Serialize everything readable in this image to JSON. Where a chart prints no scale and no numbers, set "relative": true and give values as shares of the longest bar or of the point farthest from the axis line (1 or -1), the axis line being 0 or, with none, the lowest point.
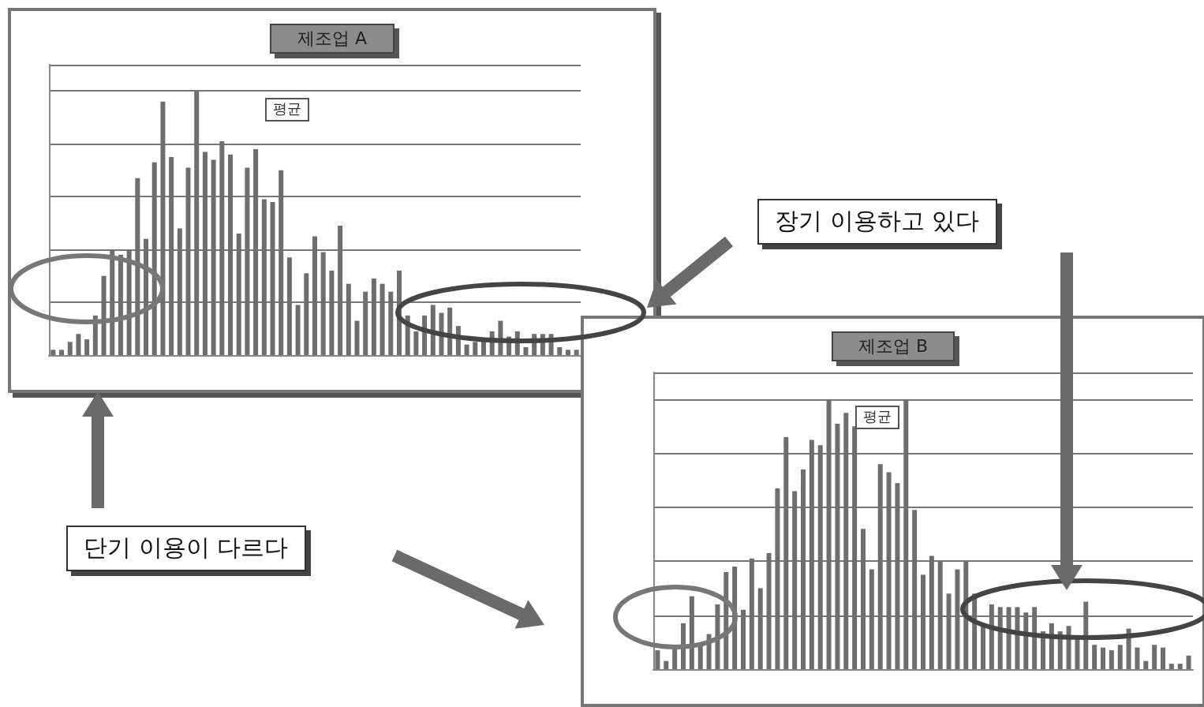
{
  "chart_data": [
    {
      "type": "bar",
      "title": "제조업 A",
      "relative": true,
      "grid": "y",
      "color": "#6e6e6e",
      "annotations": [
        "평균",
        "장기 이용하고 있다"
      ],
      "categories": [
        null,
        null,
        null,
        null,
        null,
        null,
        null,
        null,
        null,
        null,
        null,
        null,
        null,
        null,
        null,
        null,
        null,
        null,
        null,
        null,
        null,
        null,
        null,
        null,
        null,
        null,
        null,
        null,
        null,
        null,
        null,
        null,
        null,
        null,
        null,
        null,
        null,
        null,
        null,
        null,
        null,
        null,
        null,
        null,
        null,
        null,
        null,
        null,
        null,
        null,
        null,
        null,
        null,
        null,
        null,
        null,
        null,
        null,
        null,
        null,
        null,
        null,
        null
      ],
      "values": [
        0.02,
        0.02,
        0.05,
        0.08,
        0.06,
        0.15,
        0.3,
        0.4,
        0.38,
        0.4,
        0.67,
        0.44,
        0.73,
        0.96,
        0.75,
        0.48,
        0.71,
        1,
        0.77,
        0.74,
        0.81,
        0.76,
        0.46,
        0.71,
        0.78,
        0.59,
        0.58,
        0.7,
        0.37,
        0.19,
        0.31,
        0.45,
        0.39,
        0.32,
        0.49,
        0.27,
        0.13,
        0.24,
        0.29,
        0.27,
        0.24,
        0.32,
        0.15,
        0.09,
        0.15,
        0.19,
        0.16,
        0.18,
        0.11,
        0.04,
        0.05,
        0.06,
        0.09,
        0.13,
        0.07,
        0.09,
        0.03,
        0.08,
        0.08,
        0.08,
        0.03,
        0.02,
        0.02
      ]
    },
    {
      "type": "bar",
      "title": "제조업 B",
      "relative": true,
      "grid": "y",
      "color": "#6e6e6e",
      "annotations": [
        "평균",
        "단기 이용이 다르다"
      ],
      "categories": [
        null,
        null,
        null,
        null,
        null,
        null,
        null,
        null,
        null,
        null,
        null,
        null,
        null,
        null,
        null,
        null,
        null,
        null,
        null,
        null,
        null,
        null,
        null,
        null,
        null,
        null,
        null,
        null,
        null,
        null,
        null,
        null,
        null,
        null,
        null,
        null,
        null,
        null,
        null,
        null,
        null,
        null,
        null,
        null,
        null,
        null,
        null,
        null,
        null,
        null,
        null,
        null,
        null,
        null,
        null,
        null,
        null,
        null,
        null,
        null,
        null,
        null,
        null
      ],
      "values": [
        0.07,
        0.03,
        0.09,
        0.17,
        0.27,
        0.09,
        0.13,
        0.24,
        0.36,
        0.38,
        0.22,
        0.41,
        0.3,
        0.43,
        0.67,
        0.86,
        0.66,
        0.74,
        0.85,
        0.83,
        1,
        0.91,
        0.95,
        0.9,
        0.52,
        0.37,
        0.76,
        0.73,
        0.69,
        1,
        0.59,
        0.35,
        0.42,
        0.4,
        0.28,
        0.37,
        0.4,
        0.28,
        0.17,
        0.24,
        0.23,
        0.23,
        0.23,
        0.21,
        0.23,
        0.14,
        0.17,
        0.14,
        0.16,
        0.12,
        0.25,
        0.09,
        0.08,
        0.07,
        0.09,
        0.15,
        0.08,
        0.03,
        0.09,
        0.08,
        0.02,
        0.02,
        0.05
      ]
    }
  ]
}
